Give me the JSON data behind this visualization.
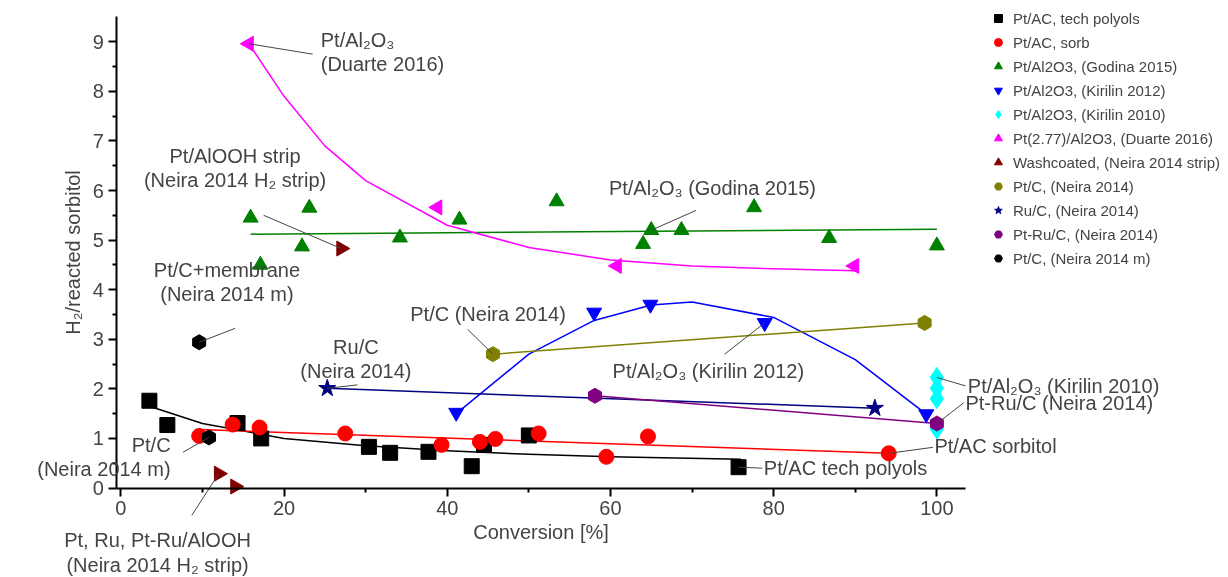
{
  "chart_data": {
    "type": "scatter",
    "xlabel": "Conversion [%]",
    "ylabel": "H₂/reacted sorbitol",
    "xlim": [
      -0.5,
      103.5
    ],
    "ylim": [
      0,
      9.5
    ],
    "xticks": [
      0,
      20,
      40,
      60,
      80,
      100
    ],
    "yticks": [
      0,
      1,
      2,
      3,
      4,
      5,
      6,
      7,
      8,
      9
    ],
    "grid": false,
    "legend": "top right",
    "series": [
      {
        "name": "Pt/AC, tech polyols",
        "color": "#000000",
        "marker": "square",
        "x": [
          3.5,
          5.7,
          14.3,
          17.2,
          30.4,
          33,
          37.7,
          43,
          44.5,
          50,
          75.7
        ],
        "values": [
          1.76,
          1.27,
          1.31,
          1.0,
          0.83,
          0.71,
          0.73,
          0.44,
          0.87,
          1.06,
          0.42
        ]
      },
      {
        "name": "Pt/AC, sorb",
        "color": "#ff0000",
        "marker": "circle",
        "x": [
          9.6,
          13.7,
          17,
          27.5,
          39.3,
          44,
          45.9,
          51.2,
          59.5,
          64.6,
          94.1
        ],
        "values": [
          1.05,
          1.28,
          1.22,
          1.1,
          0.87,
          0.93,
          0.99,
          1.1,
          0.63,
          1.04,
          0.7
        ]
      },
      {
        "name": "Pt/Al2O3, (Godina 2015)",
        "color": "#008000",
        "marker": "triangle",
        "x": [
          15.9,
          17.1,
          22.2,
          23.1,
          34.2,
          41.5,
          53.4,
          64,
          65,
          68.7,
          77.6,
          86.8,
          100
        ],
        "values": [
          5.45,
          4.5,
          4.87,
          5.65,
          5.05,
          5.41,
          5.78,
          4.92,
          5.2,
          5.2,
          5.66,
          5.04,
          4.89
        ]
      },
      {
        "name": "Pt/Al2O3, (Kirilin 2012)",
        "color": "#0000ff",
        "marker": "triangle_down",
        "x": [
          41.1,
          58,
          64.9,
          78.9,
          98.7
        ],
        "values": [
          1.52,
          3.54,
          3.7,
          3.33,
          1.49
        ]
      },
      {
        "name": "Pt/Al2O3, (Kirilin 2010)",
        "color": "#00ffff",
        "marker": "diamond",
        "x": [
          100,
          100,
          100,
          100
        ],
        "values": [
          2.23,
          2.01,
          1.8,
          1.19
        ]
      },
      {
        "name": "Pt(2.77)/Al2O3, (Duarte 2016)",
        "color": "#ff00ff",
        "marker": "triangle_left",
        "x": [
          15.7,
          38.8,
          60.8,
          89.9
        ],
        "values": [
          8.96,
          5.66,
          4.48,
          4.48
        ]
      },
      {
        "name": "Washcoated, (Neira 2014 strip)",
        "color": "#800000",
        "marker": "triangle_right",
        "x": [
          27,
          12,
          14
        ],
        "values": [
          4.83,
          0.29,
          0.03
        ]
      },
      {
        "name": "Pt/C, (Neira 2014)",
        "color": "#808000",
        "x": [
          45.6,
          98.5
        ],
        "values": [
          2.7,
          3.33
        ]
      },
      {
        "name": "Ru/C, (Neira 2014)",
        "color": "#000080",
        "marker": "star",
        "x": [
          25.3,
          92.4
        ],
        "values": [
          2.01,
          1.61
        ]
      },
      {
        "name": "Pt-Ru/C, (Neira 2014)",
        "color": "#800080",
        "x": [
          58.1,
          100
        ],
        "values": [
          1.86,
          1.3
        ]
      },
      {
        "name": "Pt/C, (Neira 2014 m)",
        "color": "#000000",
        "x": [
          9.6,
          10.8
        ],
        "values": [
          2.94,
          1.02
        ]
      },
      {
        "type": "line",
        "color": "#000000",
        "x": [
          3.5,
          10,
          20,
          30,
          40,
          50,
          60,
          76
        ],
        "values": [
          1.65,
          1.3,
          1.0,
          0.85,
          0.75,
          0.68,
          0.63,
          0.58
        ]
      },
      {
        "type": "line",
        "color": "#ff0000",
        "x": [
          9.6,
          94.1
        ],
        "values": [
          1.18,
          0.7
        ]
      },
      {
        "type": "line",
        "color": "#008000",
        "x": [
          15.9,
          100
        ],
        "values": [
          5.12,
          5.22
        ]
      },
      {
        "type": "line",
        "color": "#0000ff",
        "x": [
          41.1,
          50,
          58,
          65,
          70,
          80,
          90,
          98.7
        ],
        "values": [
          1.5,
          2.7,
          3.38,
          3.69,
          3.75,
          3.44,
          2.59,
          1.49
        ]
      },
      {
        "type": "line",
        "color": "#ff00ff",
        "x": [
          15.7,
          20,
          25,
          30,
          40,
          50,
          60,
          70,
          80,
          90
        ],
        "values": [
          8.96,
          7.9,
          6.9,
          6.2,
          5.3,
          4.85,
          4.6,
          4.48,
          4.42,
          4.38
        ]
      },
      {
        "type": "line",
        "color": "#808000",
        "x": [
          45.6,
          98.5
        ],
        "values": [
          2.7,
          3.33
        ]
      },
      {
        "type": "line",
        "color": "#000080",
        "x": [
          25.3,
          92.4
        ],
        "values": [
          2.01,
          1.61
        ]
      },
      {
        "type": "line",
        "color": "#800080",
        "x": [
          58.1,
          100
        ],
        "values": [
          1.86,
          1.3
        ]
      }
    ],
    "annotations": [
      {
        "text": "Pt/Al₂O₃\n(Duarte 2016)",
        "x": 15.7,
        "y": 8.96
      },
      {
        "text": "Pt/AlOOH strip\n(Neira 2014 H₂ strip)",
        "x": 27,
        "y": 4.83
      },
      {
        "text": "Pt/C+membrane\n(Neira 2014 m)",
        "x": 9.6,
        "y": 2.94
      },
      {
        "text": "Ru/C\n(Neira 2014)",
        "x": 25.3,
        "y": 2.01
      },
      {
        "text": "Pt/C\n(Neira 2014 m)",
        "x": 10.8,
        "y": 1.02
      },
      {
        "text": "Pt, Ru, Pt-Ru/AlOOH\n(Neira 2014 H₂ strip)",
        "x": 12,
        "y": 0.29
      },
      {
        "text": "Pt/C (Neira 2014)",
        "x": 45.6,
        "y": 2.7
      },
      {
        "text": "Pt/Al₂O₃ (Godina 2015)",
        "x": 65,
        "y": 5.2
      },
      {
        "text": "Pt/Al₂O₃ (Kirilin 2012)",
        "x": 78.9,
        "y": 3.33
      },
      {
        "text": "Pt/Al₂O₃ (Kirilin 2010)",
        "x": 100,
        "y": 2.23
      },
      {
        "text": "Pt-Ru/C (Neira 2014)",
        "x": 100,
        "y": 1.3
      },
      {
        "text": "Pt/AC sorbitol",
        "x": 94.1,
        "y": 0.7
      },
      {
        "text": "Pt/AC tech polyols",
        "x": 75.7,
        "y": 0.42
      }
    ]
  }
}
